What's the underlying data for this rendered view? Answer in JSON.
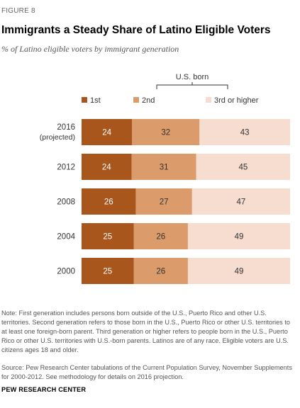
{
  "figure_label": "FIGURE 8",
  "title": "Immigrants a Steady Share of Latino Eligible Voters",
  "subtitle": "% of Latino eligible voters by immigrant generation",
  "bracket_label": "U.S. born",
  "note": "Note: First generation includes persons born outside of the U.S., Puerto Rico and other U.S. territories. Second generation refers to those born in the U.S., Puerto Rico or other U.S. territories to at least one foreign-born parent. Third generation or higher refers to people born in the U.S., Puerto Rico or other U.S. territories with U.S.-born parents. Latinos are of any race. Eligible voters are U.S. citizens ages 18 and older.",
  "source": "Source: Pew Research Center tabulations of the Current Population Survey, November Supplements for 2000-2012. See methodology for details on 2016 projection.",
  "org": "PEW RESEARCH CENTER",
  "colors": {
    "first": "#a9561d",
    "second": "#dc9b6a",
    "third": "#f6ddd0"
  },
  "chart_data": {
    "type": "bar",
    "orientation": "horizontal",
    "stacked": true,
    "categories": [
      "2016",
      "2012",
      "2008",
      "2004",
      "2000"
    ],
    "category_sublabels": [
      "(projected)",
      "",
      "",
      "",
      ""
    ],
    "series": [
      {
        "name": "1st",
        "values": [
          24,
          24,
          26,
          25,
          25
        ]
      },
      {
        "name": "2nd",
        "values": [
          32,
          31,
          27,
          26,
          26
        ]
      },
      {
        "name": "3rd or higher",
        "values": [
          43,
          45,
          47,
          49,
          49
        ]
      }
    ],
    "legend_position": "top",
    "grid": false
  }
}
